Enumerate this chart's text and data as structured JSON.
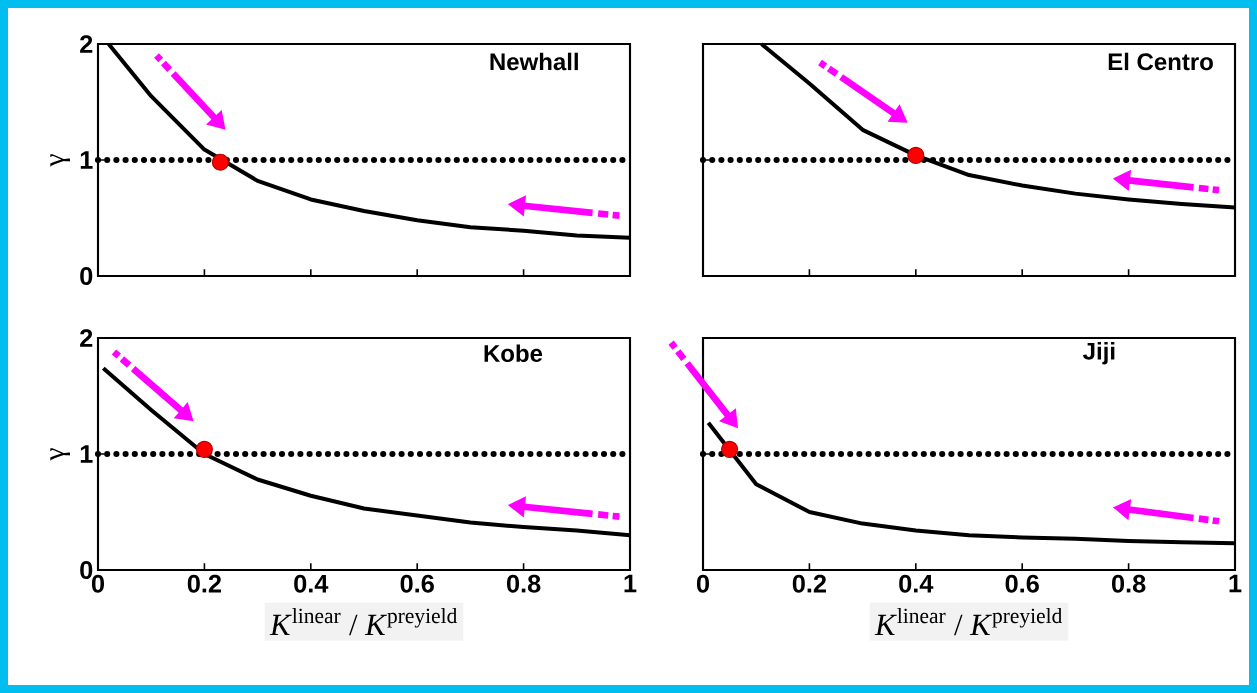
{
  "chart_data": [
    {
      "type": "line",
      "title": "Newhall",
      "ylabel": "γ",
      "xlim": [
        0,
        1
      ],
      "ylim": [
        0,
        2
      ],
      "xticks": [
        0,
        0.2,
        0.4,
        0.6,
        0.8,
        1
      ],
      "yticks": [
        0,
        1,
        2
      ],
      "tick_labels": "y",
      "x": [
        0.02,
        0.1,
        0.2,
        0.3,
        0.4,
        0.5,
        0.6,
        0.7,
        0.8,
        0.9,
        1
      ],
      "series": [
        {
          "color": "#000000",
          "values": [
            2.0,
            1.55,
            1.09,
            0.82,
            0.66,
            0.56,
            0.48,
            0.42,
            0.39,
            0.35,
            0.33
          ]
        },
        {
          "type": "scatter",
          "marker": "circle",
          "color": "#ff0000",
          "x": [
            0.23
          ],
          "values": [
            0.98
          ]
        }
      ],
      "ref_lines": [
        {
          "axis": "y",
          "value": 1,
          "color": "#000000",
          "line_style": "dotted"
        }
      ]
    },
    {
      "type": "line",
      "title": "El Centro",
      "xlim": [
        0,
        1
      ],
      "ylim": [
        0,
        2
      ],
      "xticks": [
        0,
        0.2,
        0.4,
        0.6,
        0.8,
        1
      ],
      "yticks": [
        0,
        1,
        2
      ],
      "tick_labels": false,
      "x": [
        0.11,
        0.2,
        0.3,
        0.4,
        0.5,
        0.6,
        0.7,
        0.8,
        0.9,
        1
      ],
      "series": [
        {
          "color": "#000000",
          "values": [
            2.0,
            1.66,
            1.26,
            1.04,
            0.87,
            0.78,
            0.71,
            0.66,
            0.62,
            0.59
          ]
        },
        {
          "type": "scatter",
          "marker": "circle",
          "color": "#ff0000",
          "x": [
            0.4
          ],
          "values": [
            1.04
          ]
        }
      ],
      "ref_lines": [
        {
          "axis": "y",
          "value": 1,
          "color": "#000000",
          "line_style": "dotted"
        }
      ]
    },
    {
      "type": "line",
      "title": "Kobe",
      "xlabel": "*K*$^{linear}$ / *K*$^{preyield}$",
      "ylabel": "γ",
      "xlim": [
        0,
        1
      ],
      "ylim": [
        0,
        2
      ],
      "xticks": [
        0,
        0.2,
        0.4,
        0.6,
        0.8,
        1
      ],
      "yticks": [
        0,
        1,
        2
      ],
      "x": [
        0.01,
        0.1,
        0.2,
        0.3,
        0.4,
        0.5,
        0.6,
        0.7,
        0.8,
        0.9,
        1
      ],
      "series": [
        {
          "color": "#000000",
          "values": [
            1.74,
            1.38,
            1.0,
            0.78,
            0.64,
            0.53,
            0.47,
            0.41,
            0.37,
            0.34,
            0.3
          ]
        },
        {
          "type": "scatter",
          "marker": "circle",
          "color": "#ff0000",
          "x": [
            0.2
          ],
          "values": [
            1.04
          ]
        }
      ],
      "ref_lines": [
        {
          "axis": "y",
          "value": 1,
          "color": "#000000",
          "line_style": "dotted"
        }
      ]
    },
    {
      "type": "line",
      "title": "Jiji",
      "xlabel": "*K*$^{linear}$ / *K*$^{preyield}$",
      "xlim": [
        0,
        1
      ],
      "ylim": [
        0,
        2
      ],
      "xticks": [
        0,
        0.2,
        0.4,
        0.6,
        0.8,
        1
      ],
      "yticks": [
        0,
        1,
        2
      ],
      "tick_labels": "x",
      "x": [
        0.01,
        0.1,
        0.2,
        0.3,
        0.4,
        0.5,
        0.6,
        0.7,
        0.8,
        0.9,
        1
      ],
      "series": [
        {
          "color": "#000000",
          "values": [
            1.27,
            0.74,
            0.5,
            0.4,
            0.34,
            0.3,
            0.28,
            0.27,
            0.25,
            0.24,
            0.23
          ]
        },
        {
          "type": "scatter",
          "marker": "circle",
          "color": "#ff0000",
          "x": [
            0.05
          ],
          "values": [
            1.04
          ]
        }
      ],
      "ref_lines": [
        {
          "axis": "y",
          "value": 1,
          "color": "#000000",
          "line_style": "dotted"
        }
      ]
    }
  ]
}
